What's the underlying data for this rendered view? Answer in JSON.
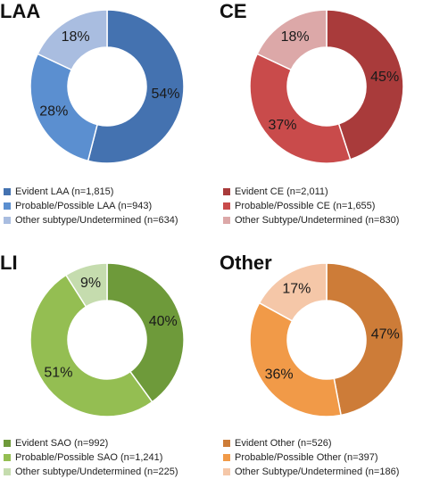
{
  "chart_data": [
    {
      "type": "pie",
      "title": "LAA",
      "donut": true,
      "slices": [
        {
          "label": "Evident LAA (n=1,815)",
          "value": 54,
          "display": "54%",
          "color": "#4472b0"
        },
        {
          "label": "Probable/Possible LAA (n=943)",
          "value": 28,
          "display": "28%",
          "color": "#5b8fd0"
        },
        {
          "label": "Other subtype/Undetermined (n=634)",
          "value": 18,
          "display": "18%",
          "color": "#a9bde0"
        }
      ]
    },
    {
      "type": "pie",
      "title": "CE",
      "donut": true,
      "slices": [
        {
          "label": "Evident CE (n=2,011)",
          "value": 45,
          "display": "45%",
          "color": "#a93b3b"
        },
        {
          "label": "Probable/Possible CE (n=1,655)",
          "value": 37,
          "display": "37%",
          "color": "#c94b4b"
        },
        {
          "label": "Other Subtype/Undetermined (n=830)",
          "value": 18,
          "display": "18%",
          "color": "#dca8a8"
        }
      ]
    },
    {
      "type": "pie",
      "title": "LI",
      "donut": true,
      "slices": [
        {
          "label": "Evident SAO (n=992)",
          "value": 40,
          "display": "40%",
          "color": "#6e9a3a"
        },
        {
          "label": "Probable/Possible SAO (n=1,241)",
          "value": 51,
          "display": "51%",
          "color": "#94be52"
        },
        {
          "label": "Other subtype/Undetermined (n=225)",
          "value": 9,
          "display": "9%",
          "color": "#c5dcae"
        }
      ]
    },
    {
      "type": "pie",
      "title": "Other",
      "donut": true,
      "slices": [
        {
          "label": "Evident Other  (n=526)",
          "value": 47,
          "display": "47%",
          "color": "#cd7c38"
        },
        {
          "label": "Probable/Possible Other (n=397)",
          "value": 36,
          "display": "36%",
          "color": "#f19a48"
        },
        {
          "label": "Other Subtype/Undetermined (n=186)",
          "value": 17,
          "display": "17%",
          "color": "#f5c7a8"
        }
      ]
    }
  ]
}
